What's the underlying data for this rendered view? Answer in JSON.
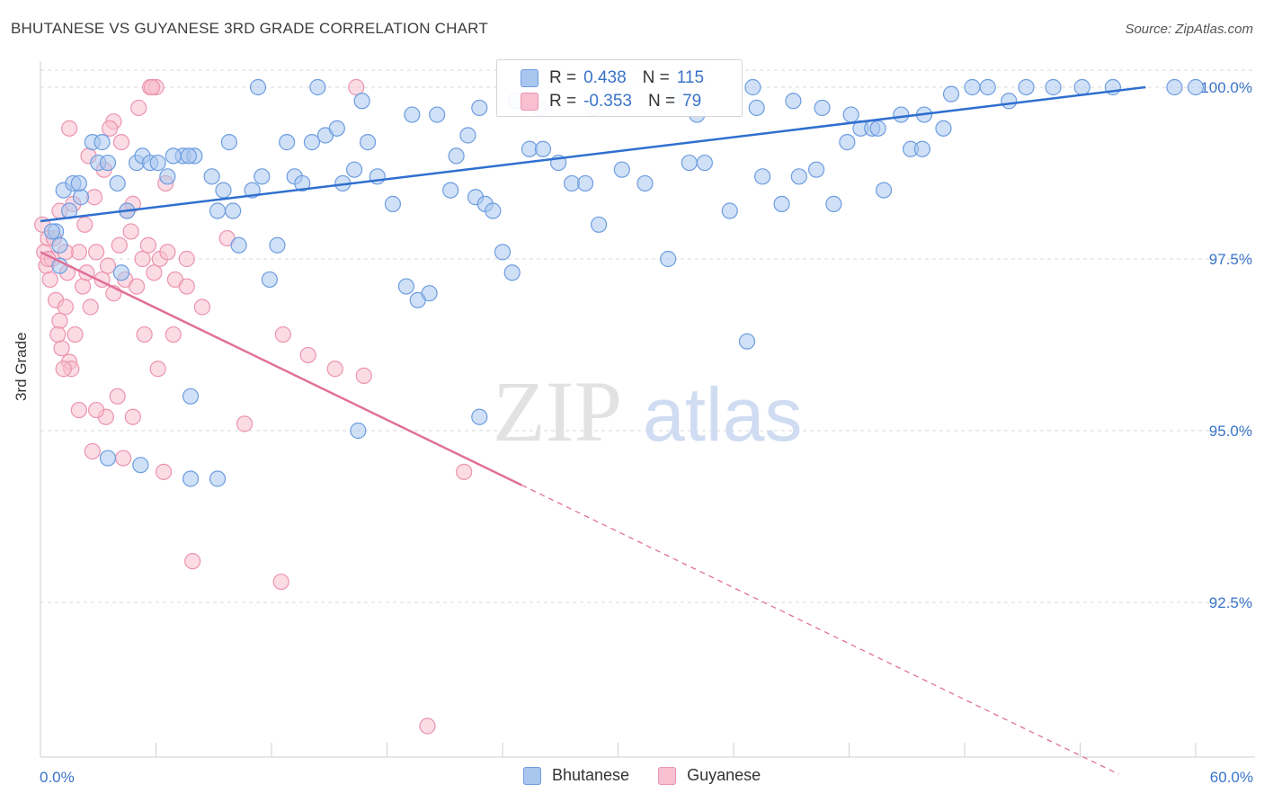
{
  "title": "BHUTANESE VS GUYANESE 3RD GRADE CORRELATION CHART",
  "source": "Source: ZipAtlas.com",
  "watermark": {
    "zip": "ZIP",
    "atlas": "atlas"
  },
  "legend": {
    "rows": [
      {
        "r_label": "R =",
        "r_value": "0.438",
        "n_label": "N =",
        "n_value": "115"
      },
      {
        "r_label": "R =",
        "r_value": "-0.353",
        "n_label": "N =",
        "n_value": "79"
      }
    ]
  },
  "colors": {
    "blue_fill": "#a9c6ef",
    "blue_stroke": "#6c9de0",
    "blue_line": "#2f6fcf",
    "pink_fill": "#f7bfd0",
    "pink_stroke": "#ec93ae",
    "pink_line": "#e0709a",
    "grid": "#d9d9d9",
    "axis_text": "#3a74c9"
  },
  "chart_data": {
    "type": "scatter",
    "title": "BHUTANESE VS GUYANESE 3RD GRADE CORRELATION CHART",
    "xlabel": "",
    "ylabel": "3rd Grade",
    "xlim": [
      0,
      60
    ],
    "ylim": [
      90.0,
      100.2
    ],
    "x_tick_labels": [
      "0.0%",
      "60.0%"
    ],
    "y_ticks": [
      92.5,
      95.0,
      97.5,
      100.0
    ],
    "y_tick_labels": [
      "92.5%",
      "95.0%",
      "97.5%",
      "100.0%"
    ],
    "grid": true,
    "legend_position": "bottom-center",
    "series": [
      {
        "name": "Bhutanese",
        "r": 0.438,
        "n": 115,
        "trend": {
          "x": [
            0,
            57.4
          ],
          "y": [
            98.05,
            100.0
          ],
          "solid_until": 57.4
        },
        "points": [
          [
            1.2,
            98.5
          ],
          [
            1.5,
            98.2
          ],
          [
            0.8,
            97.9
          ],
          [
            1.0,
            97.7
          ],
          [
            0.6,
            97.9
          ],
          [
            1.7,
            98.6
          ],
          [
            2.7,
            99.2
          ],
          [
            3.0,
            98.9
          ],
          [
            3.5,
            98.9
          ],
          [
            4.0,
            98.6
          ],
          [
            4.2,
            97.3
          ],
          [
            4.5,
            98.2
          ],
          [
            5.0,
            98.9
          ],
          [
            5.3,
            99.0
          ],
          [
            5.7,
            98.9
          ],
          [
            6.1,
            98.9
          ],
          [
            6.6,
            98.7
          ],
          [
            7.4,
            99.0
          ],
          [
            8.0,
            99.0
          ],
          [
            7.7,
            99.0
          ],
          [
            8.9,
            98.7
          ],
          [
            9.5,
            98.5
          ],
          [
            10.0,
            98.2
          ],
          [
            10.3,
            97.7
          ],
          [
            11.0,
            98.5
          ],
          [
            11.5,
            98.7
          ],
          [
            11.9,
            97.2
          ],
          [
            12.3,
            97.7
          ],
          [
            13.2,
            98.7
          ],
          [
            13.6,
            98.6
          ],
          [
            14.1,
            99.2
          ],
          [
            14.8,
            99.3
          ],
          [
            15.4,
            99.4
          ],
          [
            15.7,
            98.6
          ],
          [
            16.3,
            98.8
          ],
          [
            17.0,
            99.2
          ],
          [
            17.5,
            98.7
          ],
          [
            18.3,
            98.3
          ],
          [
            19.0,
            97.1
          ],
          [
            19.6,
            96.9
          ],
          [
            20.2,
            97.0
          ],
          [
            21.3,
            98.5
          ],
          [
            21.6,
            99.0
          ],
          [
            22.2,
            99.3
          ],
          [
            22.6,
            98.4
          ],
          [
            23.1,
            98.3
          ],
          [
            23.5,
            98.2
          ],
          [
            24.0,
            97.6
          ],
          [
            24.5,
            97.3
          ],
          [
            25.4,
            99.1
          ],
          [
            26.1,
            99.1
          ],
          [
            26.9,
            98.9
          ],
          [
            27.6,
            98.6
          ],
          [
            28.3,
            98.6
          ],
          [
            29.0,
            98.0
          ],
          [
            30.2,
            98.8
          ],
          [
            31.4,
            98.6
          ],
          [
            32.6,
            97.5
          ],
          [
            33.7,
            98.9
          ],
          [
            34.5,
            98.9
          ],
          [
            35.8,
            98.2
          ],
          [
            36.7,
            96.3
          ],
          [
            37.5,
            98.7
          ],
          [
            38.5,
            98.3
          ],
          [
            39.4,
            98.7
          ],
          [
            40.3,
            98.8
          ],
          [
            41.2,
            98.3
          ],
          [
            41.9,
            99.2
          ],
          [
            42.6,
            99.4
          ],
          [
            43.2,
            99.4
          ],
          [
            43.8,
            98.5
          ],
          [
            44.7,
            99.6
          ],
          [
            45.2,
            99.1
          ],
          [
            45.8,
            99.1
          ],
          [
            46.9,
            99.4
          ],
          [
            48.4,
            100.0
          ],
          [
            49.2,
            100.0
          ],
          [
            50.3,
            99.8
          ],
          [
            51.2,
            100.0
          ],
          [
            52.6,
            100.0
          ],
          [
            54.1,
            100.0
          ],
          [
            55.7,
            100.0
          ],
          [
            58.9,
            100.0
          ],
          [
            60.0,
            100.0
          ],
          [
            11.3,
            100.0
          ],
          [
            14.4,
            100.0
          ],
          [
            16.7,
            99.8
          ],
          [
            19.3,
            99.6
          ],
          [
            20.6,
            99.6
          ],
          [
            22.8,
            99.7
          ],
          [
            24.7,
            99.8
          ],
          [
            25.9,
            99.7
          ],
          [
            29.6,
            100.0
          ],
          [
            33.1,
            99.9
          ],
          [
            34.1,
            99.6
          ],
          [
            37.0,
            100.0
          ],
          [
            39.1,
            99.8
          ],
          [
            40.6,
            99.7
          ],
          [
            42.1,
            99.6
          ],
          [
            43.5,
            99.4
          ],
          [
            45.9,
            99.6
          ],
          [
            47.3,
            99.9
          ],
          [
            37.2,
            99.7
          ],
          [
            28.7,
            99.7
          ],
          [
            12.8,
            99.2
          ],
          [
            9.2,
            98.2
          ],
          [
            9.8,
            99.2
          ],
          [
            6.9,
            99.0
          ],
          [
            3.2,
            99.2
          ],
          [
            2.1,
            98.4
          ],
          [
            1.0,
            97.4
          ],
          [
            2.0,
            98.6
          ],
          [
            5.2,
            94.5
          ],
          [
            7.8,
            95.5
          ],
          [
            22.8,
            95.2
          ],
          [
            7.8,
            94.3
          ],
          [
            3.5,
            94.6
          ],
          [
            9.2,
            94.3
          ],
          [
            16.5,
            95.0
          ]
        ]
      },
      {
        "name": "Guyanese",
        "r": -0.353,
        "n": 79,
        "trend": {
          "x": [
            0,
            56.0
          ],
          "y": [
            97.6,
            90.0
          ],
          "solid_until": 25.0
        },
        "points": [
          [
            0.2,
            97.6
          ],
          [
            0.3,
            97.4
          ],
          [
            0.4,
            97.8
          ],
          [
            0.5,
            97.2
          ],
          [
            0.6,
            97.5
          ],
          [
            0.8,
            96.9
          ],
          [
            1.0,
            96.6
          ],
          [
            1.1,
            96.2
          ],
          [
            1.3,
            96.8
          ],
          [
            1.4,
            97.3
          ],
          [
            1.5,
            96.0
          ],
          [
            1.6,
            95.9
          ],
          [
            1.8,
            96.4
          ],
          [
            2.0,
            97.6
          ],
          [
            2.2,
            97.1
          ],
          [
            2.4,
            97.3
          ],
          [
            2.6,
            96.8
          ],
          [
            2.9,
            97.6
          ],
          [
            3.2,
            97.2
          ],
          [
            3.5,
            97.4
          ],
          [
            3.8,
            97.0
          ],
          [
            4.1,
            97.7
          ],
          [
            4.4,
            97.2
          ],
          [
            4.7,
            97.9
          ],
          [
            5.0,
            97.1
          ],
          [
            5.3,
            97.5
          ],
          [
            5.6,
            97.7
          ],
          [
            5.9,
            97.3
          ],
          [
            6.2,
            97.5
          ],
          [
            6.6,
            97.6
          ],
          [
            7.0,
            97.2
          ],
          [
            7.6,
            97.5
          ],
          [
            1.0,
            98.2
          ],
          [
            1.7,
            98.3
          ],
          [
            2.3,
            98.0
          ],
          [
            2.8,
            98.4
          ],
          [
            3.3,
            98.8
          ],
          [
            3.8,
            99.5
          ],
          [
            4.2,
            99.2
          ],
          [
            4.5,
            98.2
          ],
          [
            5.1,
            99.7
          ],
          [
            5.7,
            100.0
          ],
          [
            6.0,
            100.0
          ],
          [
            6.5,
            98.6
          ],
          [
            1.5,
            99.4
          ],
          [
            2.5,
            99.0
          ],
          [
            3.6,
            99.4
          ],
          [
            4.8,
            98.3
          ],
          [
            0.9,
            96.4
          ],
          [
            1.2,
            95.9
          ],
          [
            2.0,
            95.3
          ],
          [
            2.7,
            94.7
          ],
          [
            3.4,
            95.2
          ],
          [
            4.0,
            95.5
          ],
          [
            4.8,
            95.2
          ],
          [
            5.4,
            96.4
          ],
          [
            6.1,
            95.9
          ],
          [
            6.9,
            96.4
          ],
          [
            7.6,
            97.1
          ],
          [
            8.4,
            96.8
          ],
          [
            2.9,
            95.3
          ],
          [
            4.3,
            94.6
          ],
          [
            6.4,
            94.4
          ],
          [
            7.9,
            93.1
          ],
          [
            10.6,
            95.1
          ],
          [
            12.6,
            96.4
          ],
          [
            13.9,
            96.1
          ],
          [
            15.3,
            95.9
          ],
          [
            12.5,
            92.8
          ],
          [
            16.8,
            95.8
          ],
          [
            20.1,
            90.7
          ],
          [
            22.0,
            94.4
          ],
          [
            16.4,
            100.0
          ],
          [
            5.8,
            100.0
          ],
          [
            9.7,
            97.8
          ],
          [
            0.1,
            98.0
          ],
          [
            0.4,
            97.5
          ],
          [
            0.7,
            97.8
          ],
          [
            1.3,
            97.6
          ]
        ]
      }
    ]
  }
}
